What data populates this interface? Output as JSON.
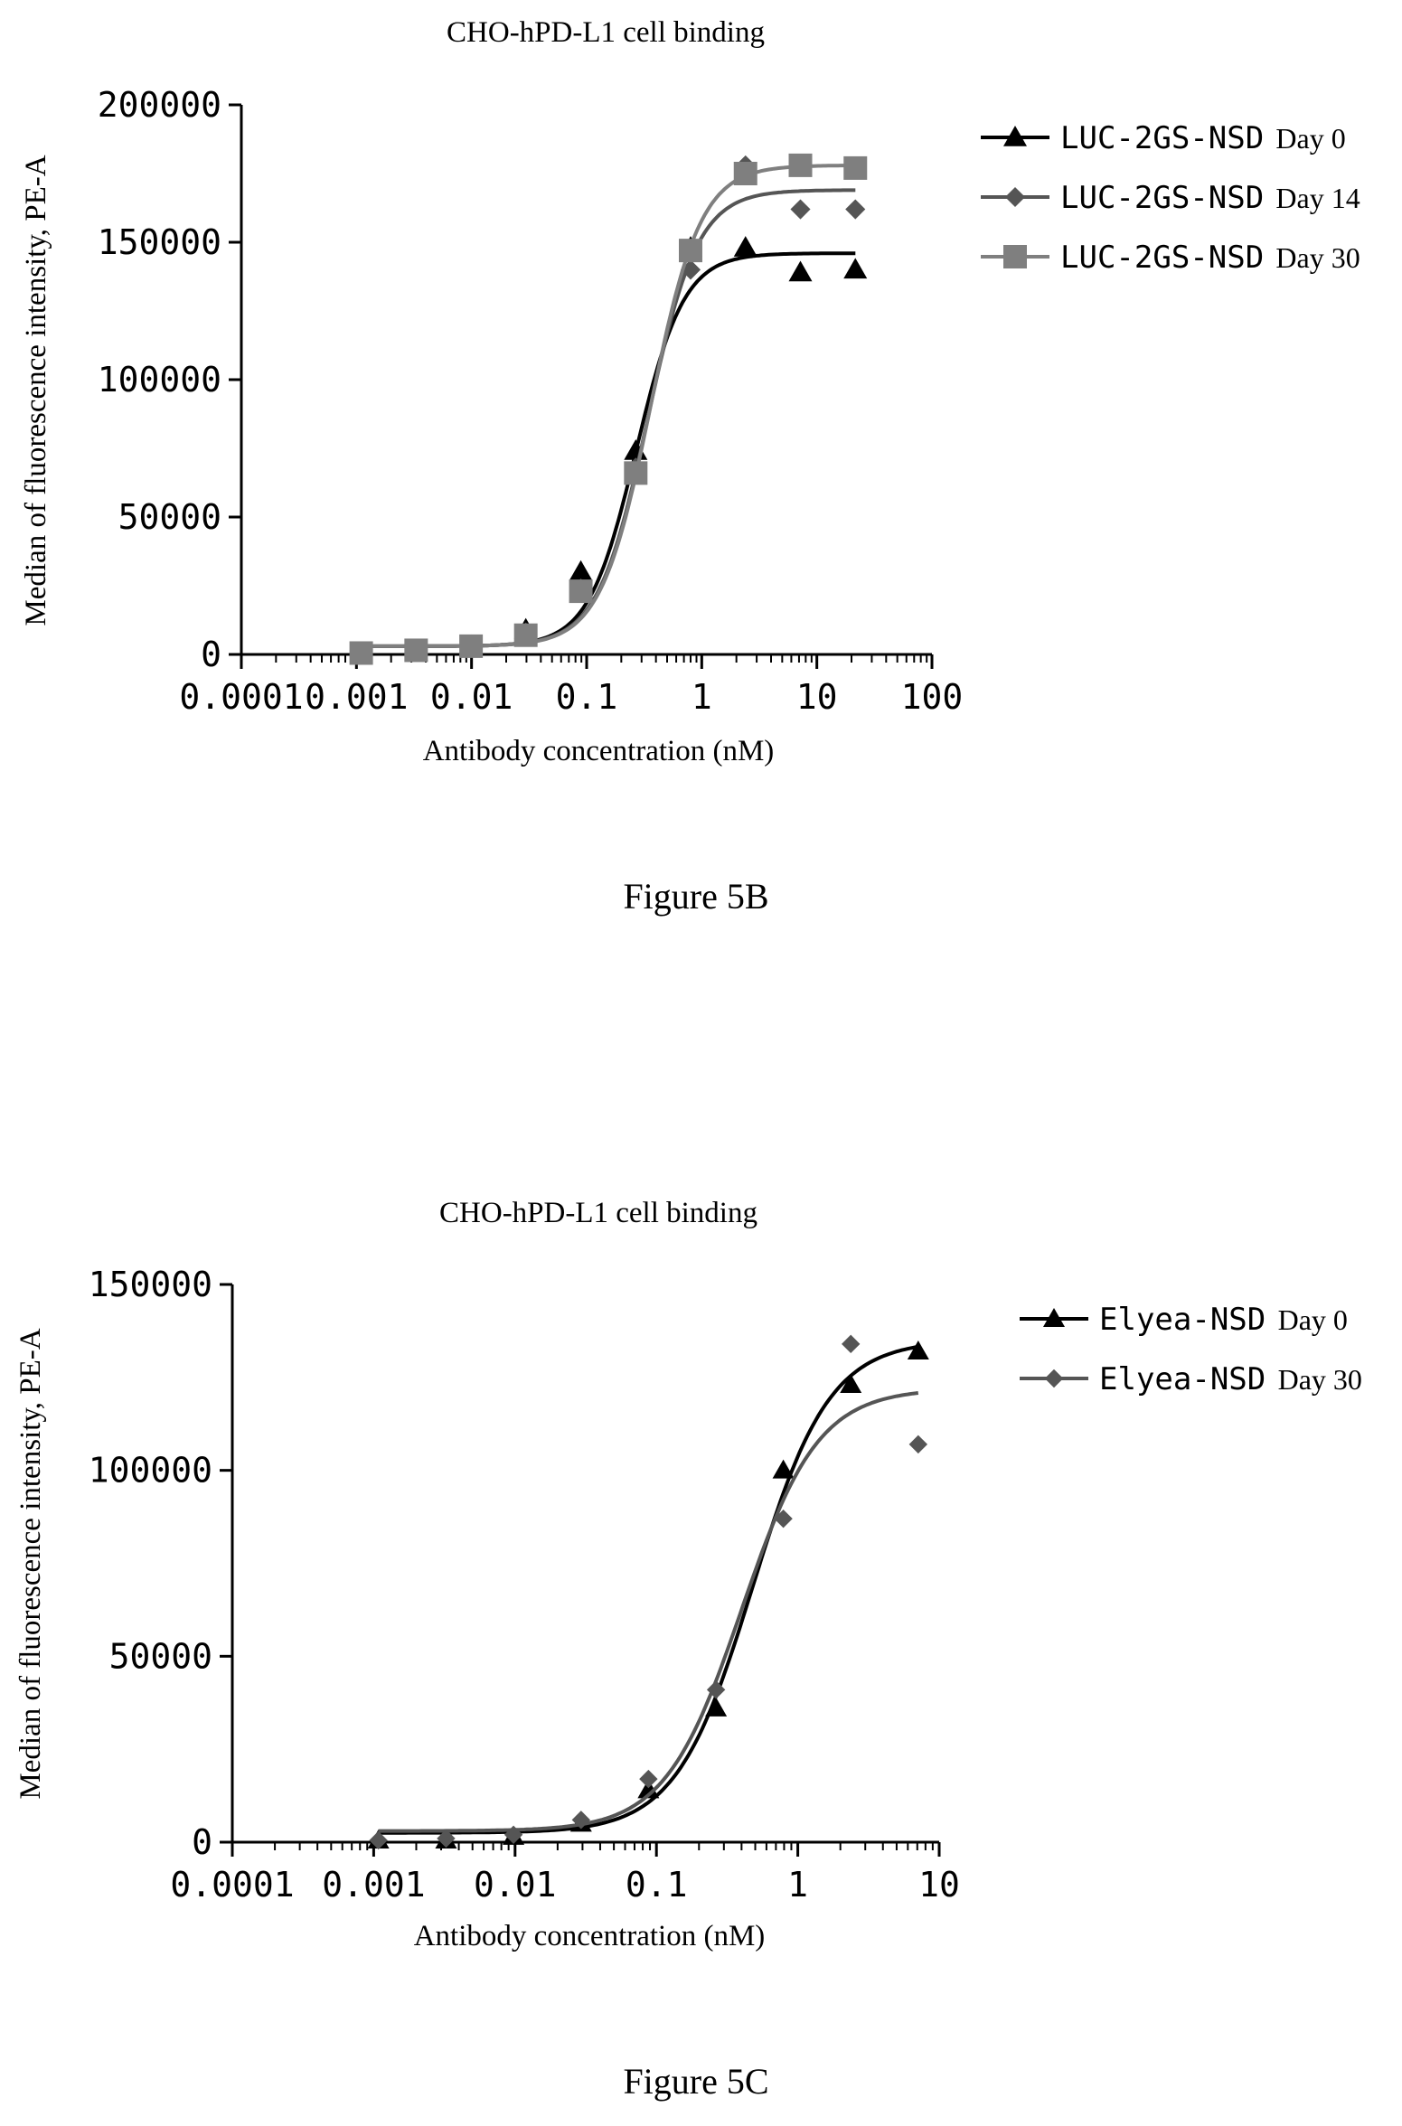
{
  "chart_data": [
    {
      "type": "scatter",
      "title": "CHO-hPD-L1 cell binding",
      "xlabel": "Antibody concentration (nM)",
      "ylabel": "Median of fluorescence intensity, PE-A",
      "x_scale": "log",
      "xlim": [
        0.0001,
        100
      ],
      "ylim": [
        0,
        200000
      ],
      "x_ticks": [
        "0.0001",
        "0.001",
        "0.01",
        "0.1",
        "1",
        "10",
        "100"
      ],
      "y_ticks": [
        "0",
        "50000",
        "100000",
        "150000",
        "200000"
      ],
      "grid": false,
      "legend_position": "top-right",
      "caption": "Figure 5B",
      "series": [
        {
          "name": "LUC-2GS-NSD",
          "label": "Day 0",
          "marker": "triangle",
          "color": "#000000",
          "x": [
            0.0011,
            0.0033,
            0.0099,
            0.0296,
            0.089,
            0.267,
            0.8,
            2.4,
            7.2,
            21.6
          ],
          "y": [
            500,
            1000,
            3000,
            9000,
            30000,
            74000,
            148000,
            148000,
            139000,
            140000
          ],
          "fit": {
            "bottom": 3000,
            "top": 146000,
            "ec50": 0.27,
            "hill": 2.1
          }
        },
        {
          "name": "LUC-2GS-NSD",
          "label": "Day 14",
          "marker": "diamond",
          "color": "#555555",
          "x": [
            0.0011,
            0.0033,
            0.0099,
            0.0296,
            0.089,
            0.267,
            0.8,
            2.4,
            7.2,
            21.6
          ],
          "y": [
            500,
            1000,
            2500,
            8000,
            24000,
            68000,
            140000,
            178000,
            162000,
            162000
          ],
          "fit": {
            "bottom": 3000,
            "top": 169000,
            "ec50": 0.34,
            "hill": 2.0
          }
        },
        {
          "name": "LUC-2GS-NSD",
          "label": "Day 30",
          "marker": "square",
          "color": "#7f7f7f",
          "x": [
            0.0011,
            0.0033,
            0.0099,
            0.0296,
            0.089,
            0.267,
            0.8,
            2.4,
            7.2,
            21.6
          ],
          "y": [
            500,
            1500,
            3000,
            7000,
            23000,
            66000,
            147000,
            175000,
            178000,
            177000
          ],
          "fit": {
            "bottom": 3000,
            "top": 178000,
            "ec50": 0.36,
            "hill": 2.0
          }
        }
      ]
    },
    {
      "type": "scatter",
      "title": "CHO-hPD-L1 cell binding",
      "xlabel": "Antibody concentration (nM)",
      "ylabel": "Median of fluorescence intensity, PE-A",
      "x_scale": "log",
      "xlim": [
        0.0001,
        10
      ],
      "ylim": [
        0,
        150000
      ],
      "x_ticks": [
        "0.0001",
        "0.001",
        "0.01",
        "0.1",
        "1",
        "10"
      ],
      "y_ticks": [
        "0",
        "50000",
        "100000",
        "150000"
      ],
      "grid": false,
      "legend_position": "top-right",
      "caption": "Figure 5C",
      "series": [
        {
          "name": "Elyea-NSD",
          "label": "Day 0",
          "marker": "triangle",
          "color": "#000000",
          "x": [
            0.00108,
            0.00325,
            0.00975,
            0.0293,
            0.0878,
            0.264,
            0.79,
            2.37,
            7.11
          ],
          "y": [
            500,
            500,
            1500,
            5000,
            14000,
            36000,
            100000,
            123000,
            132000
          ],
          "fit": {
            "bottom": 2500,
            "top": 135000,
            "ec50": 0.48,
            "hill": 1.6
          }
        },
        {
          "name": "Elyea-NSD",
          "label": "Day 30",
          "marker": "diamond",
          "color": "#555555",
          "x": [
            0.00108,
            0.00325,
            0.00975,
            0.0293,
            0.0878,
            0.264,
            0.79,
            2.37,
            7.11
          ],
          "y": [
            500,
            1000,
            2000,
            6000,
            17000,
            41000,
            87000,
            134000,
            107000
          ],
          "fit": {
            "bottom": 3000,
            "top": 122000,
            "ec50": 0.4,
            "hill": 1.6
          }
        }
      ]
    }
  ]
}
